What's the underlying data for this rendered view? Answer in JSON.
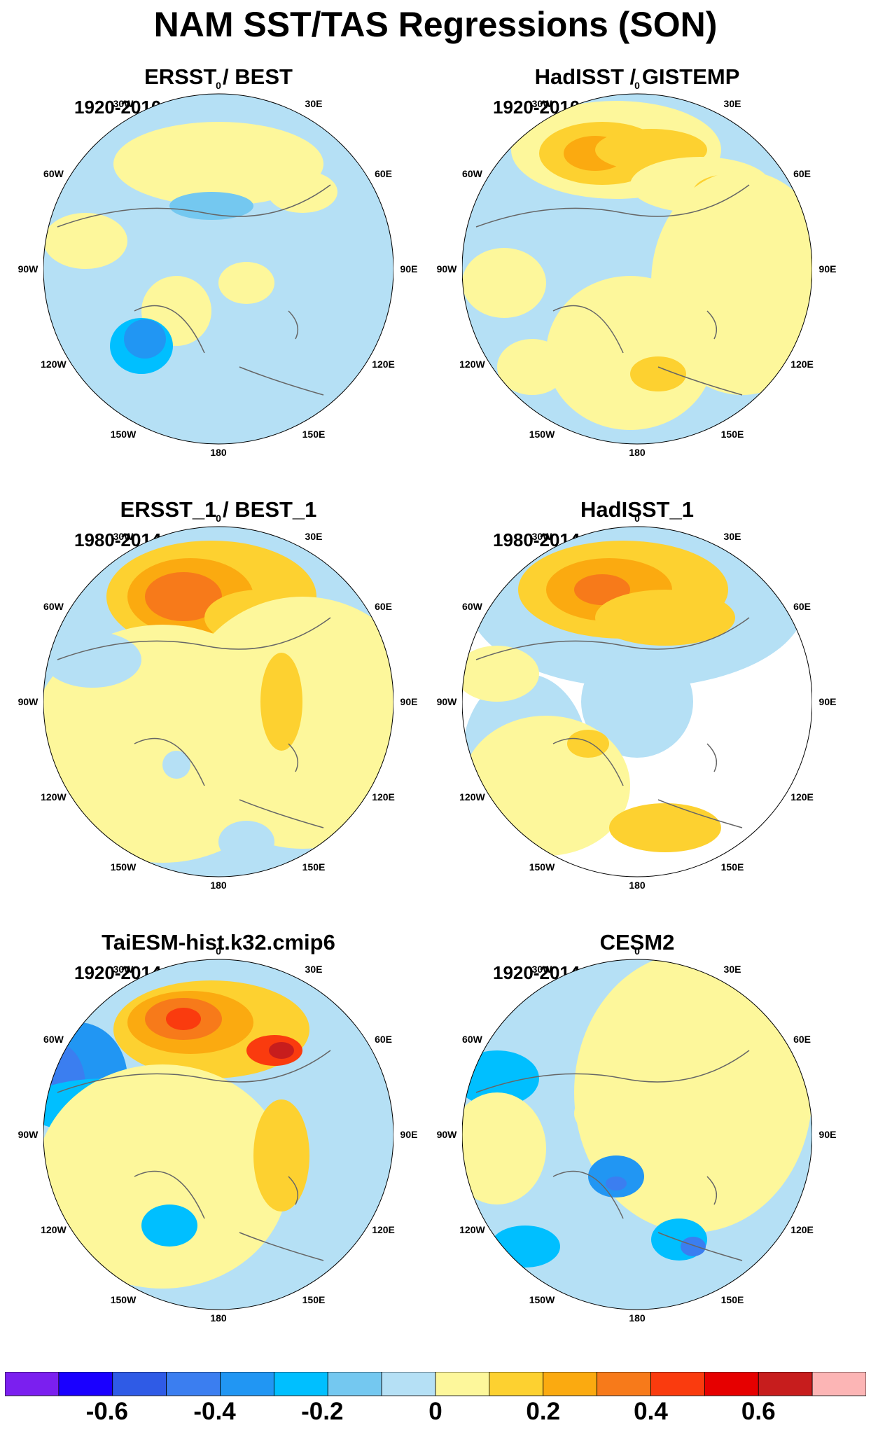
{
  "title": "NAM SST/TAS Regressions (SON)",
  "lon_labels": {
    "n180": "180",
    "w150": "150W",
    "e150": "150E",
    "w120": "120W",
    "e120": "120E",
    "w90": "90W",
    "e90": "90E",
    "w60": "60W",
    "e60": "60E",
    "w30": "30W",
    "e30": "30E",
    "zero": "0"
  },
  "panels": [
    {
      "title": "ERSST / BEST",
      "period": "1920-2010"
    },
    {
      "title": "HadISST / GISTEMP",
      "period": "1920-2010"
    },
    {
      "title": "ERSST_1 / BEST_1",
      "period": "1980-2014"
    },
    {
      "title": "HadISST_1",
      "period": "1980-2014"
    },
    {
      "title": "TaiESM-hist.k32.cmip6",
      "period": "1920-2014"
    },
    {
      "title": "CESM2",
      "period": "1920-2014"
    }
  ],
  "colorbar": {
    "colors": [
      "#7b1fef",
      "#1a00ff",
      "#2f5be6",
      "#3b7ef0",
      "#2196f3",
      "#00bfff",
      "#74c8f0",
      "#b5e0f5",
      "#fdf79b",
      "#fdd130",
      "#fbaa10",
      "#f77a1a",
      "#fa3b0e",
      "#e60000",
      "#c71d1d",
      "#fcb5b5"
    ],
    "labels": [
      "-0.6",
      "-0.4",
      "-0.2",
      "0",
      "0.2",
      "0.4",
      "0.6"
    ],
    "label_values": [
      -0.6,
      -0.4,
      -0.2,
      0,
      0.2,
      0.4,
      0.6
    ]
  }
}
